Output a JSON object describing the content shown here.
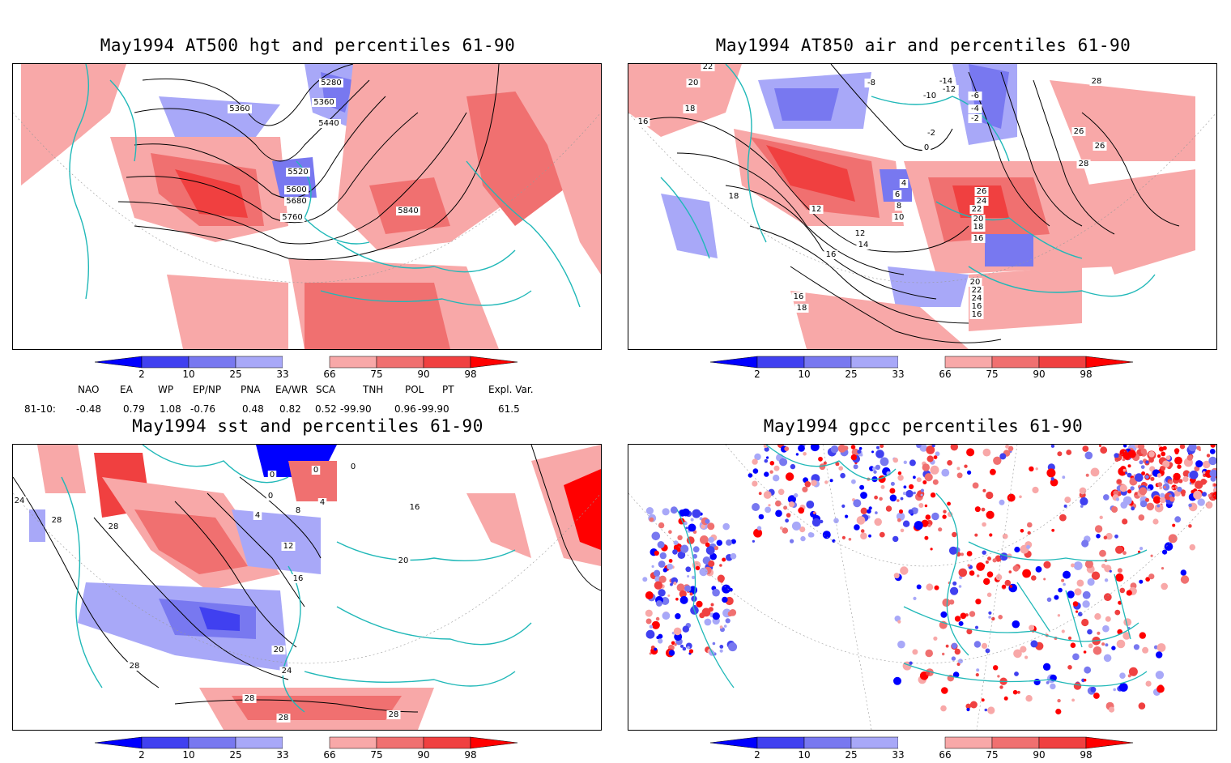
{
  "panels": [
    {
      "id": "p1",
      "title": "May1994 AT500 hgt and percentiles 61-90",
      "contour_labels": [
        "5280",
        "5360",
        "5360",
        "5440",
        "5520",
        "5600",
        "5680",
        "5760",
        "5840"
      ]
    },
    {
      "id": "p2",
      "title": "May1994 AT850 air and percentiles 61-90",
      "contour_labels": [
        "22",
        "20",
        "18",
        "16",
        "-8",
        "-14",
        "-12",
        "-10",
        "-6",
        "-4",
        "-2",
        "-2",
        "0",
        "28",
        "26",
        "26",
        "28",
        "18",
        "4",
        "6",
        "8",
        "10",
        "12",
        "12",
        "14",
        "16",
        "16",
        "18",
        "20",
        "22",
        "24",
        "16",
        "16",
        "26",
        "24",
        "22",
        "20",
        "18",
        "16"
      ]
    },
    {
      "id": "p3",
      "title": "May1994 sst and percentiles 61-90",
      "contour_labels": [
        "24",
        "28",
        "28",
        "0",
        "0",
        "0",
        "0",
        "4",
        "4",
        "8",
        "12",
        "16",
        "16",
        "20",
        "20",
        "24",
        "28",
        "28",
        "28",
        "28"
      ]
    },
    {
      "id": "p4",
      "title": "May1994 gpcc percentiles 61-90",
      "contour_labels": []
    }
  ],
  "colorbar": {
    "labels": [
      "2",
      "10",
      "25",
      "33",
      "66",
      "75",
      "90",
      "98"
    ],
    "colors": {
      "c2": "#0000ff",
      "c10": "#4040f0",
      "c25": "#7878f0",
      "c33": "#a8a8f8",
      "c66": "#f8a8a8",
      "c75": "#f07070",
      "c90": "#f04040",
      "c98": "#ff0000"
    }
  },
  "indices": {
    "headers": [
      "NAO",
      "EA",
      "WP",
      "EP/NP",
      "PNA",
      "EA/WR",
      "SCA",
      "TNH",
      "POL",
      "PT",
      "Expl. Var."
    ],
    "row_label": "81-10:",
    "values": [
      "-0.48",
      "0.79",
      "1.08",
      "-0.76",
      "0.48",
      "0.82",
      "0.52",
      "-99.90",
      "0.96",
      "-99.90",
      "61.5"
    ]
  },
  "map_colors": {
    "coast": "#20b8b8",
    "contour": "#000000",
    "grid": "#999999"
  }
}
